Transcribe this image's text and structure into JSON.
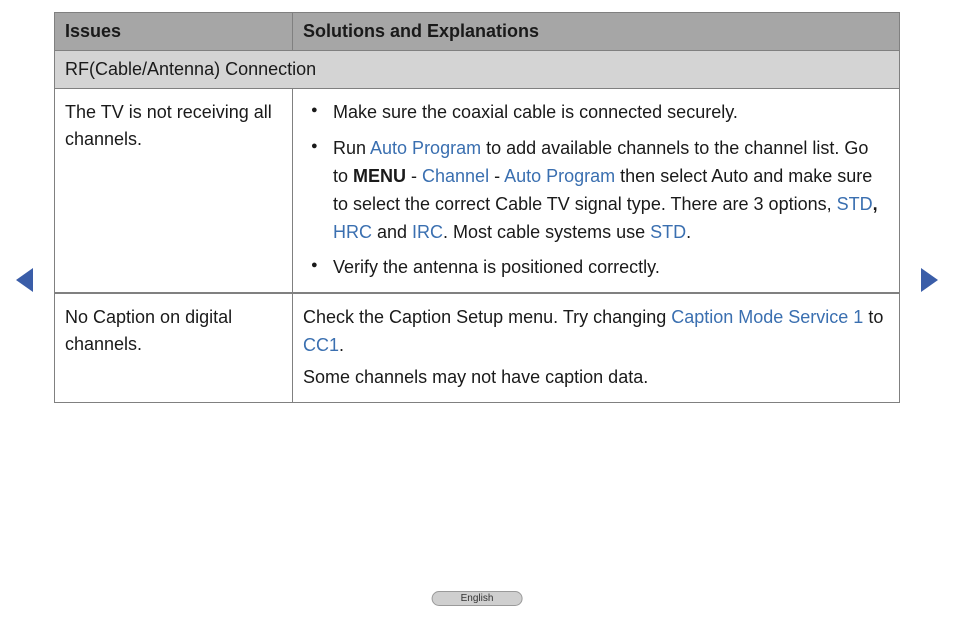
{
  "colors": {
    "header_bg": "#a6a6a6",
    "section_bg": "#d4d4d4",
    "border": "#808080",
    "text": "#1a1a1a",
    "link": "#3a6fb0",
    "arrow": "#3a5da8",
    "badge_bg": "#cfcfcf",
    "badge_border": "#9a9a9a"
  },
  "table": {
    "headers": {
      "issues": "Issues",
      "solutions": "Solutions and Explanations"
    },
    "section_title": "RF(Cable/Antenna) Connection",
    "rows": [
      {
        "issue": "The TV is not receiving all channels.",
        "bullets": [
          {
            "parts": [
              {
                "text": "Make sure the coaxial cable is connected securely.",
                "type": "plain"
              }
            ]
          },
          {
            "parts": [
              {
                "text": "Run ",
                "type": "plain"
              },
              {
                "text": "Auto Program",
                "type": "link"
              },
              {
                "text": " to add available channels to the channel list. Go to ",
                "type": "plain"
              },
              {
                "text": "MENU",
                "type": "bold"
              },
              {
                "text": " - ",
                "type": "plain"
              },
              {
                "text": "Channel",
                "type": "link"
              },
              {
                "text": " - ",
                "type": "plain"
              },
              {
                "text": "Auto Program",
                "type": "link"
              },
              {
                "text": " then select Auto and make sure to select the correct Cable TV signal type. There are 3 options, ",
                "type": "plain"
              },
              {
                "text": "STD",
                "type": "link"
              },
              {
                "text": ", ",
                "type": "bold"
              },
              {
                "text": "HRC",
                "type": "link"
              },
              {
                "text": " and ",
                "type": "plain"
              },
              {
                "text": "IRC",
                "type": "link"
              },
              {
                "text": ". Most cable systems use ",
                "type": "plain"
              },
              {
                "text": "STD",
                "type": "link"
              },
              {
                "text": ".",
                "type": "plain"
              }
            ]
          },
          {
            "parts": [
              {
                "text": "Verify the antenna is positioned correctly.",
                "type": "plain"
              }
            ]
          }
        ]
      },
      {
        "issue": "No Caption on digital channels.",
        "paragraphs": [
          {
            "parts": [
              {
                "text": "Check the Caption Setup menu. Try changing ",
                "type": "plain"
              },
              {
                "text": "Caption Mode Service 1",
                "type": "link"
              },
              {
                "text": " to ",
                "type": "plain"
              },
              {
                "text": "CC1",
                "type": "link"
              },
              {
                "text": ".",
                "type": "plain"
              }
            ]
          },
          {
            "parts": [
              {
                "text": "Some channels may not have caption data.",
                "type": "plain"
              }
            ]
          }
        ]
      }
    ]
  },
  "footer": {
    "language": "English"
  }
}
